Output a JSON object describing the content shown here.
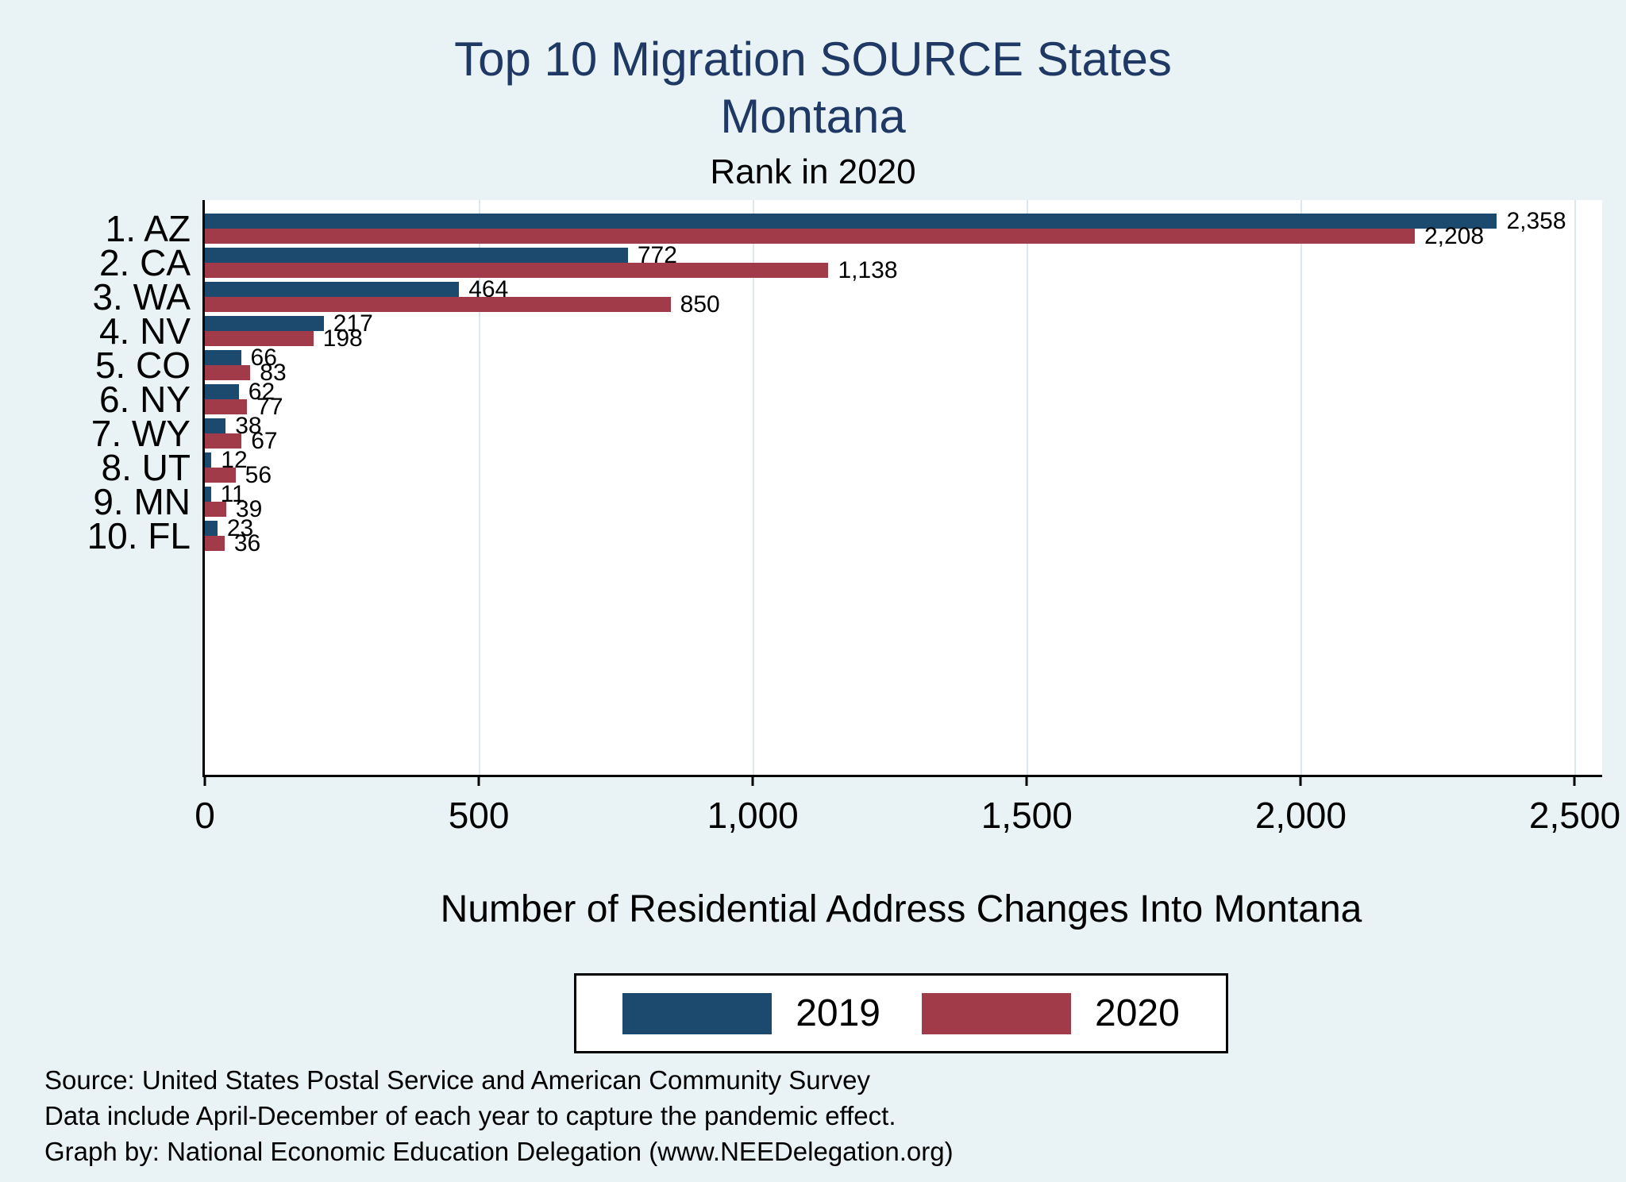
{
  "header": {
    "title_line1": "Top 10 Migration SOURCE States",
    "title_line2": "Montana",
    "subtitle": "Rank in 2020"
  },
  "colors": {
    "page_background": "#e9f2f4",
    "plot_background": "#ffffff",
    "title_text": "#1f3864",
    "gridline": "#dde8ee",
    "series_2019": "#1c4a6e",
    "series_2020": "#a13b49"
  },
  "chart_data": {
    "type": "bar",
    "orientation": "horizontal",
    "title": "Top 10 Migration SOURCE States Montana",
    "subtitle": "Rank in 2020",
    "categories": [
      "1. AZ",
      "2. CA",
      "3. WA",
      "4. NV",
      "5. CO",
      "6. NY",
      "7. WY",
      "8. UT",
      "9. MN",
      "10. FL"
    ],
    "series": [
      {
        "name": "2019",
        "color": "#1c4a6e",
        "values": [
          2358,
          772,
          464,
          217,
          66,
          62,
          38,
          12,
          11,
          23
        ]
      },
      {
        "name": "2020",
        "color": "#a13b49",
        "values": [
          2208,
          1138,
          850,
          198,
          83,
          77,
          67,
          56,
          39,
          36
        ]
      }
    ],
    "xlabel": "Number of Residential Address Changes Into Montana",
    "ylabel": "",
    "x_ticks": [
      0,
      500,
      1000,
      1500,
      2000,
      2500
    ],
    "x_tick_labels": [
      "0",
      "500",
      "1,000",
      "1,500",
      "2,000",
      "2,500"
    ],
    "xlim": [
      0,
      2550
    ],
    "grid": true,
    "legend_position": "bottom"
  },
  "notes": {
    "line1": "Source: United States Postal Service and American Community Survey",
    "line2": "Data include April-December of each year to capture the pandemic effect.",
    "line3": "Graph by: National Economic Education Delegation (www.NEEDelegation.org)"
  }
}
